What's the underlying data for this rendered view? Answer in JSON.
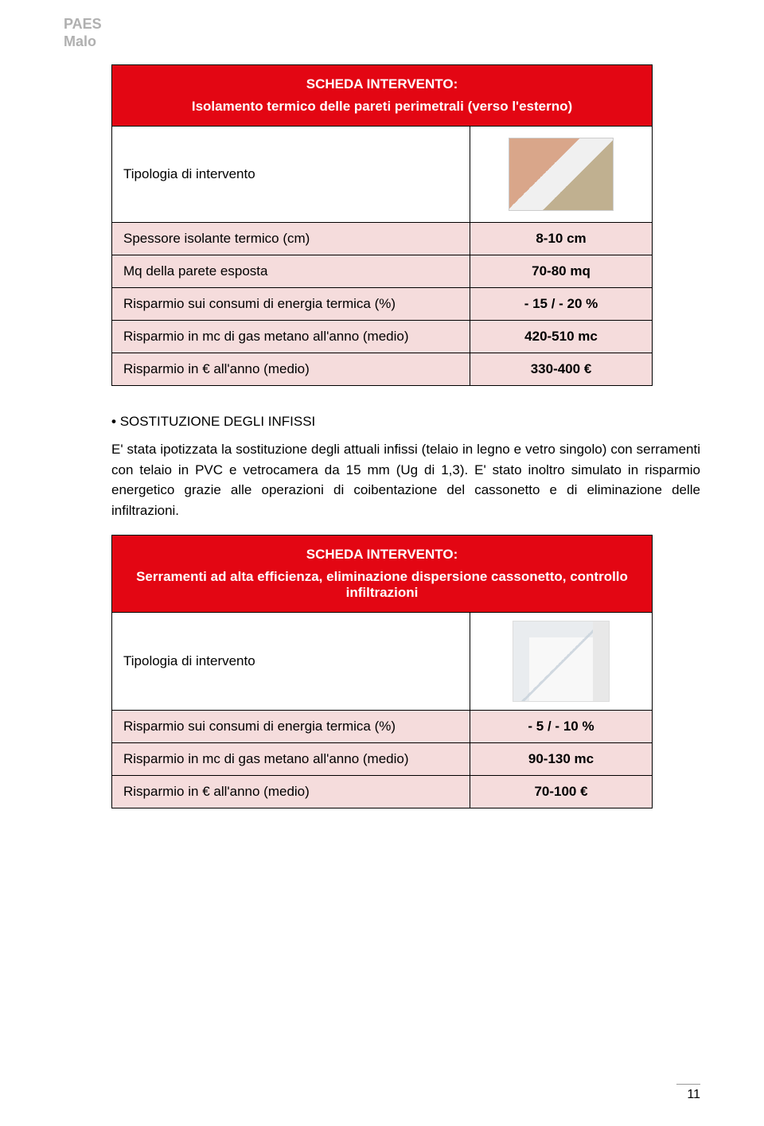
{
  "header": {
    "line1": "PAES",
    "line2": "Malo"
  },
  "table1": {
    "header_line1": "SCHEDA INTERVENTO:",
    "header_line2": "Isolamento termico delle pareti perimetrali (verso l'esterno)",
    "rows": [
      {
        "label": "Tipologia di intervento",
        "value": ""
      },
      {
        "label": "Spessore isolante termico (cm)",
        "value": "8-10 cm"
      },
      {
        "label": "Mq della parete esposta",
        "value": "70-80 mq"
      },
      {
        "label": "Risparmio sui consumi di energia termica (%)",
        "value": "- 15 / - 20 %"
      },
      {
        "label": "Risparmio in mc di gas metano all'anno (medio)",
        "value": "420-510 mc"
      },
      {
        "label": "Risparmio in € all'anno (medio)",
        "value": "330-400 €"
      }
    ]
  },
  "section": {
    "title": "SOSTITUZIONE DEGLI INFISSI",
    "body": "E' stata ipotizzata la sostituzione degli attuali infissi (telaio in legno e vetro singolo) con serramenti con telaio in PVC e vetrocamera da 15 mm (Ug di 1,3). E' stato inoltro simulato in risparmio energetico grazie alle operazioni di coibentazione del cassonetto e di eliminazione delle infiltrazioni."
  },
  "table2": {
    "header_line1": "SCHEDA INTERVENTO:",
    "header_line2": "Serramenti ad alta efficienza, eliminazione dispersione cassonetto, controllo infiltrazioni",
    "rows": [
      {
        "label": "Tipologia di intervento",
        "value": ""
      },
      {
        "label": "Risparmio sui consumi di energia termica (%)",
        "value": "- 5 / - 10 %"
      },
      {
        "label": "Risparmio in mc di gas metano all'anno (medio)",
        "value": "90-130 mc"
      },
      {
        "label": "Risparmio in € all'anno (medio)",
        "value": "70-100 €"
      }
    ]
  },
  "page_number": "11"
}
